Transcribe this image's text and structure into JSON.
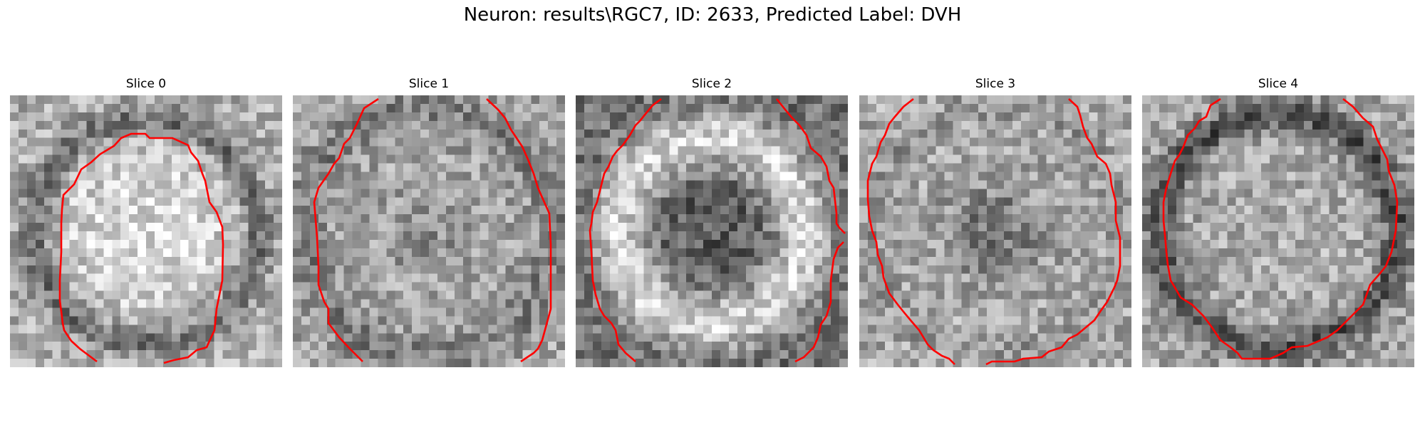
{
  "figure": {
    "title": "Neuron: results\\RGC7, ID: 2633, Predicted Label: DVH"
  },
  "panels": [
    {
      "title": "Slice 0",
      "pattern": "bright-soma"
    },
    {
      "title": "Slice 1",
      "pattern": "noisy-soma"
    },
    {
      "title": "Slice 2",
      "pattern": "dark-center-ring"
    },
    {
      "title": "Slice 3",
      "pattern": "dark-center"
    },
    {
      "title": "Slice 4",
      "pattern": "dark-ring-edge"
    }
  ],
  "colors": {
    "contour": "#ff0000",
    "background": "#ffffff"
  }
}
